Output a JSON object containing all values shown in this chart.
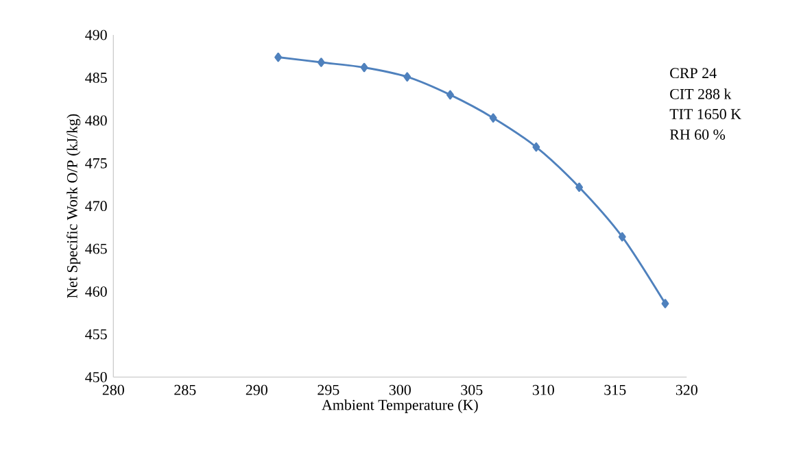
{
  "chart_data": {
    "type": "line",
    "xlabel": "Ambient Temperature (K)",
    "ylabel": "Net Specific Work O/P (kJ/kg)",
    "x": [
      291.5,
      294.5,
      297.5,
      300.5,
      303.5,
      306.5,
      309.5,
      312.5,
      315.5,
      318.5
    ],
    "series": [
      {
        "color": "#4f81bd",
        "values": [
          487.4,
          486.8,
          486.2,
          485.1,
          483.0,
          480.3,
          476.9,
          472.2,
          466.4,
          458.6
        ]
      }
    ],
    "xlim": [
      280,
      320
    ],
    "xticks": [
      280,
      285,
      290,
      295,
      300,
      305,
      310,
      315,
      320
    ],
    "ylim": [
      450,
      490
    ],
    "yticks": [
      450,
      455,
      460,
      465,
      470,
      475,
      480,
      485,
      490
    ],
    "marker": "diamond",
    "line_style": "solid",
    "grid": false,
    "legend": false,
    "annotations": [
      "CRP 24",
      "CIT 288 k",
      "TIT 1650 K",
      "RH 60 %"
    ]
  }
}
